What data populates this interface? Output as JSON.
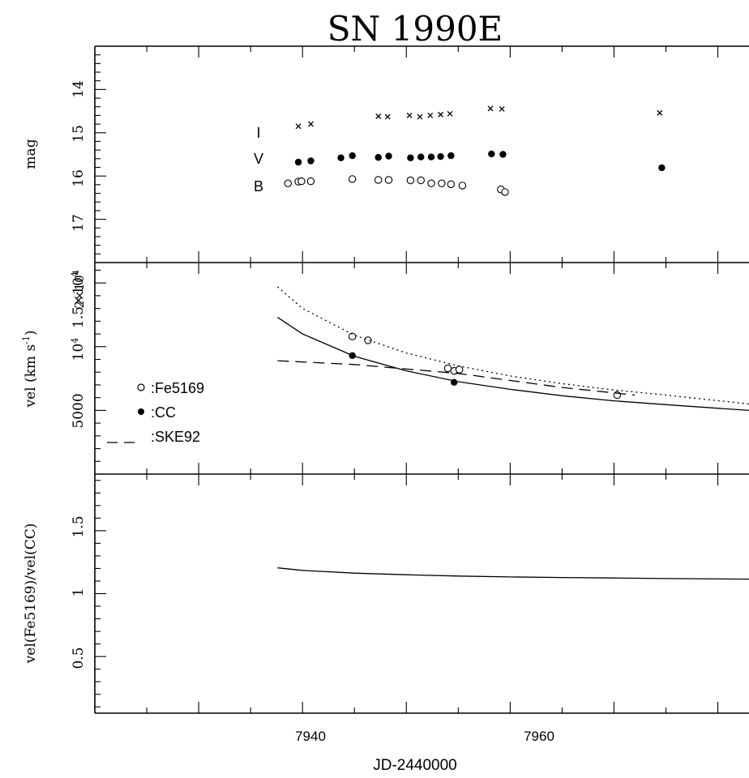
{
  "chart_data": {
    "type": "scatter",
    "title": "SN 1990E",
    "xlabel": "JD-2440000",
    "xlim": [
      7920,
      7983
    ],
    "xticks": [
      "7940",
      "7960"
    ],
    "panels": [
      {
        "name": "mag",
        "ylabel": "mag",
        "ylim": [
          18.0,
          13.0
        ],
        "yticks": [
          "14",
          "15",
          "16",
          "17"
        ],
        "band_labels": [
          "I",
          "V",
          "B"
        ],
        "series": [
          {
            "name": "I",
            "marker": "cross",
            "x": [
              7939.6,
              7940.8,
              7947.3,
              7948.2,
              7950.3,
              7951.3,
              7952.3,
              7953.3,
              7954.2,
              7958.1,
              7959.2,
              7974.4
            ],
            "y": [
              14.85,
              14.8,
              14.62,
              14.63,
              14.6,
              14.63,
              14.6,
              14.58,
              14.56,
              14.44,
              14.45,
              14.54
            ]
          },
          {
            "name": "V",
            "marker": "filled-circle",
            "x": [
              7939.6,
              7940.8,
              7943.7,
              7944.8,
              7947.3,
              7948.3,
              7950.4,
              7951.4,
              7952.4,
              7953.3,
              7954.3,
              7958.2,
              7959.3,
              7974.6
            ],
            "y": [
              15.68,
              15.65,
              15.58,
              15.53,
              15.57,
              15.54,
              15.58,
              15.56,
              15.56,
              15.55,
              15.53,
              15.49,
              15.5,
              15.81
            ]
          },
          {
            "name": "B",
            "marker": "open-circle",
            "x": [
              7938.6,
              7939.6,
              7939.9,
              7940.8,
              7944.8,
              7947.3,
              7948.3,
              7950.4,
              7951.4,
              7952.4,
              7953.4,
              7954.3,
              7955.4,
              7959.1,
              7959.5
            ],
            "y": [
              16.17,
              16.13,
              16.12,
              16.12,
              16.07,
              16.09,
              16.09,
              16.1,
              16.1,
              16.17,
              16.17,
              16.19,
              16.22,
              16.31,
              16.37
            ]
          }
        ]
      },
      {
        "name": "vel",
        "ylabel": "vel (km s",
        "ylabel_sup": "-1",
        "ylabel_tail": ")",
        "ylim": [
          0,
          16600
        ],
        "yticks": [
          {
            "value": 5000,
            "label": "5000"
          },
          {
            "value": 10000,
            "label": "10",
            "sup": "4"
          },
          {
            "value": 15000,
            "label": "1.5×10",
            "sup": "4"
          }
        ],
        "top_label": {
          "base": "2×10",
          "sup": "4"
        },
        "legend": {
          "position": "lower-left",
          "entries": [
            {
              "marker": "open-circle",
              "label": ":Fe5169"
            },
            {
              "marker": "filled-circle",
              "label": ":CC"
            },
            {
              "marker": "dash",
              "label": ":SKE92"
            }
          ]
        },
        "series": [
          {
            "name": "Fe5169",
            "marker": "open-circle",
            "x": [
              7944.8,
              7946.3,
              7954.0,
              7954.6,
              7955.1,
              7970.3
            ],
            "y": [
              10800,
              10500,
              8300,
              8100,
              8200,
              6200
            ]
          },
          {
            "name": "CC",
            "marker": "filled-circle",
            "x": [
              7944.8,
              7954.6
            ],
            "y": [
              9300,
              7200
            ]
          },
          {
            "name": "Fe5169 fit",
            "style": "dotted",
            "x": [
              7937.6,
              7940,
              7945,
              7950,
              7955,
              7960,
              7965,
              7970,
              7975,
              7983
            ],
            "y": [
              14700,
              13000,
              10900,
              9500,
              8500,
              7700,
              7100,
              6600,
              6200,
              5500
            ]
          },
          {
            "name": "CC fit",
            "style": "solid",
            "x": [
              7937.6,
              7940,
              7945,
              7950,
              7955,
              7960,
              7965,
              7970,
              7975,
              7983
            ],
            "y": [
              12300,
              11000,
              9250,
              8100,
              7250,
              6650,
              6150,
              5750,
              5450,
              5000
            ]
          },
          {
            "name": "SKE92",
            "style": "dashed",
            "x": [
              7937.6,
              7945,
              7955,
              7965,
              7972
            ],
            "y": [
              8900,
              8600,
              7900,
              6800,
              6200
            ]
          }
        ]
      },
      {
        "name": "ratio",
        "ylabel": "vel(Fe5169)/vel(CC)",
        "ylim": [
          0.05,
          1.95
        ],
        "yticks": [
          "0.5",
          "1",
          "1.5"
        ],
        "series": [
          {
            "name": "ratio",
            "style": "solid",
            "x": [
              7937.6,
              7940,
              7945,
              7950,
              7955,
              7960,
              7965,
              7970,
              7975,
              7983
            ],
            "y": [
              1.205,
              1.185,
              1.163,
              1.15,
              1.14,
              1.133,
              1.128,
              1.124,
              1.12,
              1.115
            ]
          }
        ]
      }
    ]
  }
}
